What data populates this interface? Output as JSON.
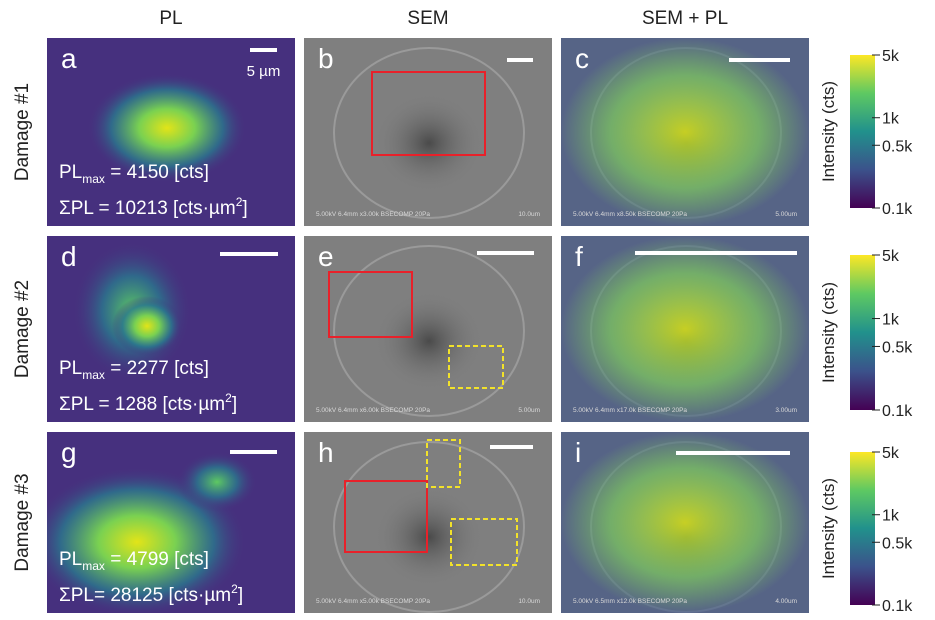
{
  "columns": [
    "PL",
    "SEM",
    "SEM + PL"
  ],
  "rows": [
    {
      "label": "Damage #1",
      "panels": [
        {
          "letter": "a",
          "scale_label": "5 µm",
          "pl_max": {
            "symbol": "PL",
            "subscript": "max",
            "text": " = 4150 [cts]"
          },
          "sum_pl": {
            "text": "ΣPL = 10213 [cts·µm",
            "superscript": "2",
            "close": "]"
          }
        },
        {
          "letter": "b",
          "caption": "5.00kV 6.4mm x3.00k BSECOMP 20Pa",
          "scale_text": "10.0um"
        },
        {
          "letter": "c",
          "caption": "5.00kV 6.4mm x8.50k BSECOMP 20Pa",
          "scale_text": "5.00um"
        }
      ],
      "colorbar": {
        "label": "Intensity (cts)",
        "ticks": [
          "5k",
          "1k",
          "0.5k",
          "0.1k"
        ]
      }
    },
    {
      "label": "Damage #2",
      "panels": [
        {
          "letter": "d",
          "pl_max": {
            "symbol": "PL",
            "subscript": "max",
            "text": " = 2277 [cts]"
          },
          "sum_pl": {
            "text": "ΣPL = 1288 [cts·µm",
            "superscript": "2",
            "close": "]"
          }
        },
        {
          "letter": "e",
          "caption": "5.00kV 6.4mm x6.00k BSECOMP 20Pa",
          "scale_text": "5.00um"
        },
        {
          "letter": "f",
          "caption": "5.00kV 6.4mm x17.0k BSECOMP 20Pa",
          "scale_text": "3.00um"
        }
      ],
      "colorbar": {
        "label": "Intensity (cts)",
        "ticks": [
          "5k",
          "1k",
          "0.5k",
          "0.1k"
        ]
      }
    },
    {
      "label": "Damage #3",
      "panels": [
        {
          "letter": "g",
          "pl_max": {
            "symbol": "PL",
            "subscript": "max",
            "text": " = 4799 [cts]"
          },
          "sum_pl": {
            "text": "ΣPL= 28125 [cts·µm",
            "superscript": "2",
            "close": "]"
          }
        },
        {
          "letter": "h",
          "caption": "5.00kV 6.4mm x5.00k BSECOMP 20Pa",
          "scale_text": "10.0um"
        },
        {
          "letter": "i",
          "caption": "5.00kV 6.5mm x12.0k BSECOMP 20Pa",
          "scale_text": "4.00um"
        }
      ],
      "colorbar": {
        "label": "Intensity (cts)",
        "ticks": [
          "5k",
          "1k",
          "0.5k",
          "0.1k"
        ]
      }
    }
  ]
}
